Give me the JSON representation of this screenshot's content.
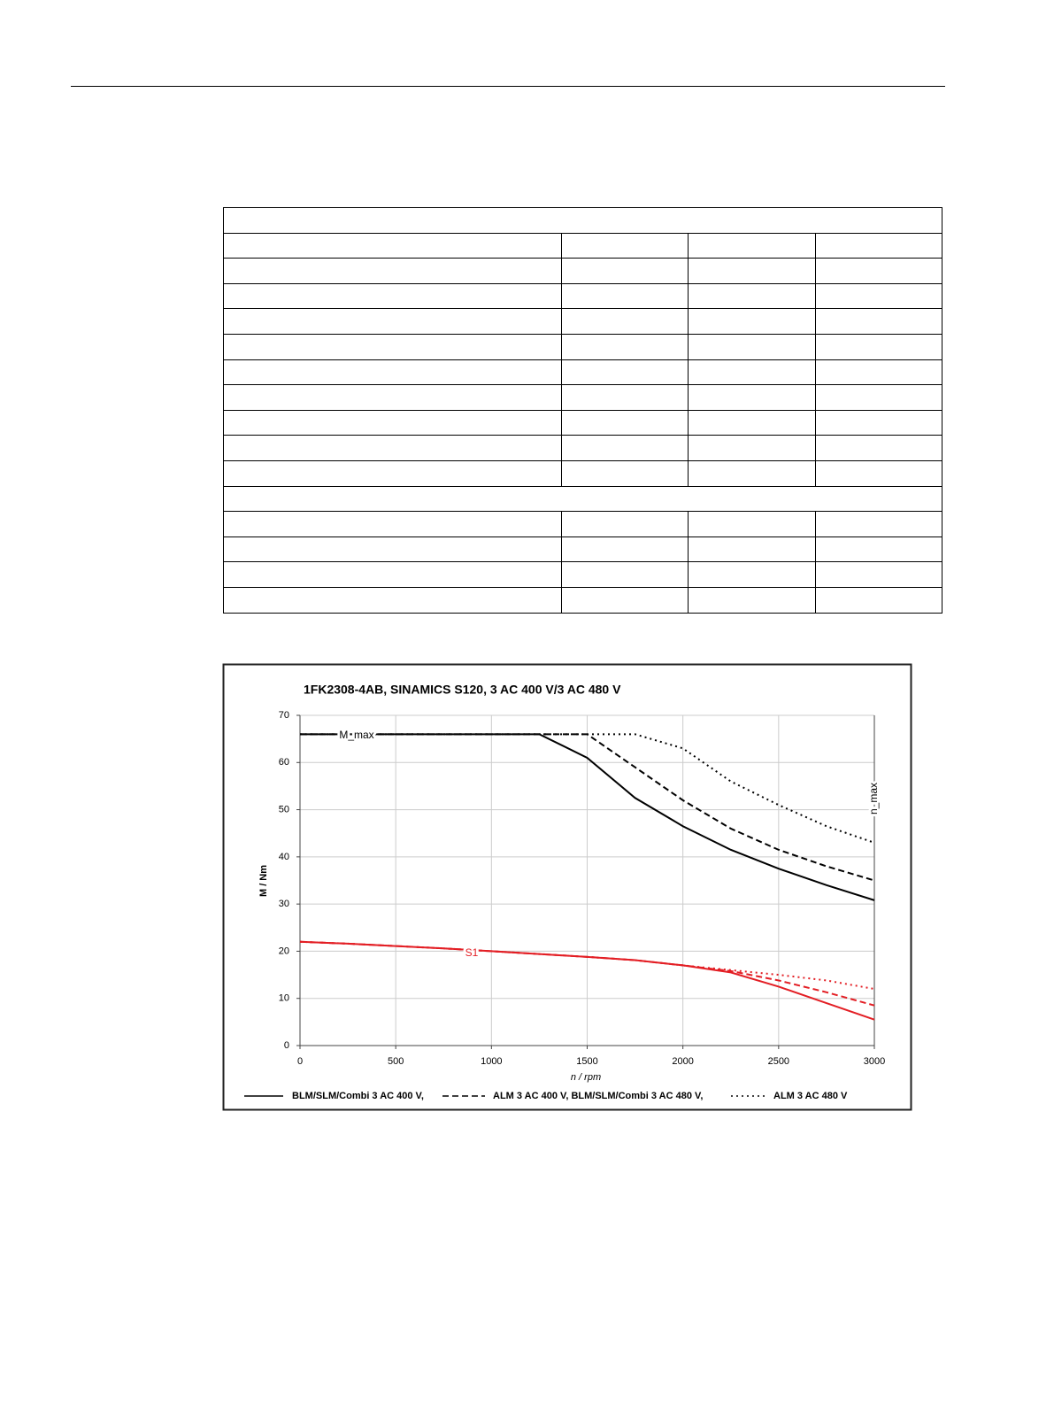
{
  "chart_data": {
    "type": "line",
    "title": "1FK2308-4AB, SINAMICS S120, 3 AC 400 V/3 AC 480 V",
    "x_label": "n / rpm",
    "y_label": "M / Nm",
    "annotations": [
      "M_max",
      "S1",
      "n_max"
    ],
    "x": [
      0,
      250,
      500,
      750,
      1000,
      1250,
      1500,
      1750,
      2000,
      2250,
      2500,
      2750,
      3000
    ],
    "series": [
      {
        "name": "BLM/SLM/Combi 3 AC 400 V,",
        "color": "#000000",
        "dash": "solid",
        "values": [
          66,
          66,
          66,
          66,
          66,
          66,
          61,
          52.5,
          46.5,
          41.5,
          37.5,
          34,
          30.8
        ]
      },
      {
        "name": "ALM 3 AC 400 V, BLM/SLM/Combi 3 AC 480 V,",
        "color": "#000000",
        "dash": "dashed",
        "values": [
          66,
          66,
          66,
          66,
          66,
          66,
          66,
          59,
          52,
          46,
          41.5,
          38,
          35
        ]
      },
      {
        "name": "ALM 3 AC 480 V",
        "color": "#000000",
        "dash": "dotted",
        "values": [
          66,
          66,
          66,
          66,
          66,
          66,
          66,
          66,
          63,
          56,
          51,
          46.5,
          43
        ]
      },
      {
        "color": "#e31e24",
        "dash": "solid",
        "values": [
          22,
          21.6,
          21.1,
          20.6,
          20,
          19.4,
          18.8,
          18.1,
          17,
          15.5,
          12.5,
          9,
          5.5
        ]
      },
      {
        "color": "#e31e24",
        "dash": "dashed",
        "values": [
          22,
          21.6,
          21.1,
          20.6,
          20,
          19.4,
          18.8,
          18.1,
          17,
          15.8,
          13.8,
          11.3,
          8.5
        ]
      },
      {
        "color": "#e31e24",
        "dash": "dotted",
        "values": [
          22,
          21.6,
          21.1,
          20.6,
          20,
          19.4,
          18.8,
          18.1,
          17,
          16,
          15,
          13.8,
          12
        ]
      }
    ],
    "xlim": [
      0,
      3000
    ],
    "xticks": [
      0,
      500,
      1000,
      1500,
      2000,
      2500,
      3000
    ],
    "ylim": [
      0,
      70
    ],
    "yticks": [
      0,
      10,
      20,
      30,
      40,
      50,
      60,
      70
    ],
    "grid": true
  }
}
